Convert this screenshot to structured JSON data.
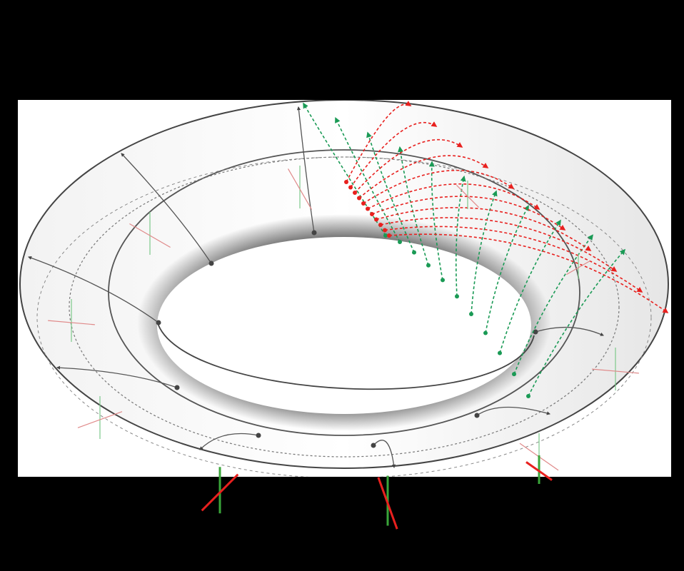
{
  "figure": {
    "subject": "torus",
    "background_color": "#000000",
    "panel_color": "#ffffff",
    "surface_shading": "white-to-dark-grey",
    "outline_color": "#444444",
    "colors": {
      "red": "#e8201e",
      "green": "#1a9a55",
      "light_red": "#e08a8a",
      "light_green": "#7cc98a",
      "strong_green": "#3aa63a"
    },
    "meridian_count": 8,
    "geodesic_family_count": 11,
    "frame_marker_count": 11,
    "icons": [
      "arrowhead-icon",
      "dot-icon"
    ]
  }
}
